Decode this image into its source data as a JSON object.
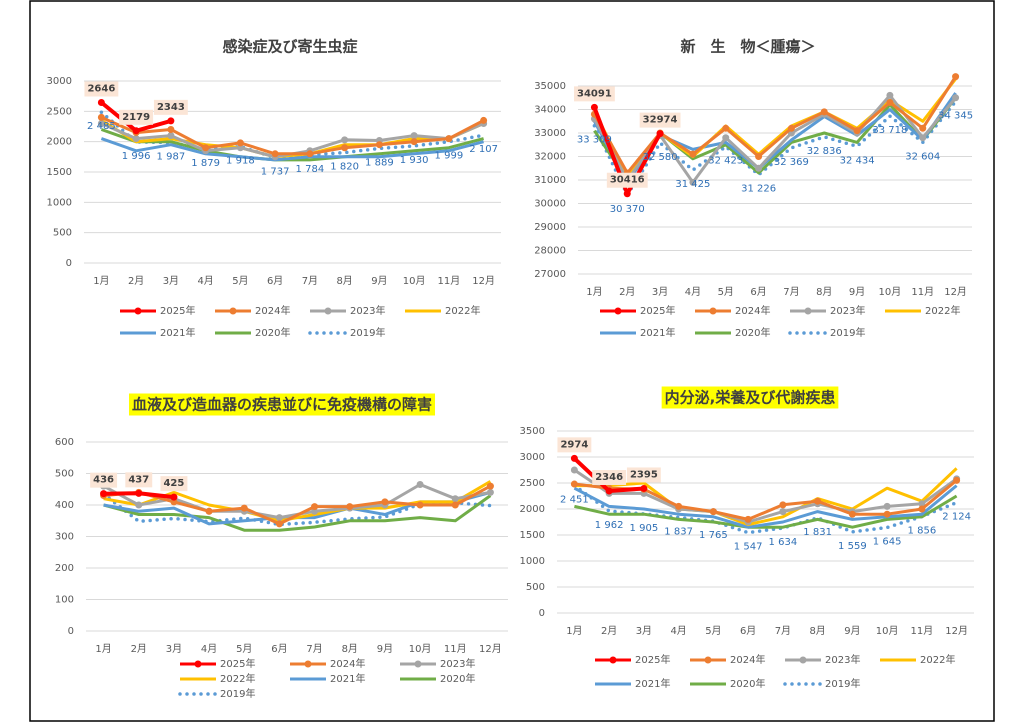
{
  "chart_data": [
    {
      "type": "line",
      "title": "感染症及び寄生虫症",
      "categories": [
        "1月",
        "2月",
        "3月",
        "4月",
        "5月",
        "6月",
        "7月",
        "8月",
        "9月",
        "10月",
        "11月",
        "12月"
      ],
      "ylim": [
        0,
        3000
      ],
      "yticks": [
        0,
        500,
        1000,
        1500,
        2000,
        2500,
        3000
      ],
      "series": [
        {
          "name": "2025年",
          "color": "#ff0000",
          "values": [
            2646,
            2179,
            2343,
            null,
            null,
            null,
            null,
            null,
            null,
            null,
            null,
            null
          ],
          "value_labels": [
            "2646",
            "2179",
            "2343",
            null,
            null,
            null,
            null,
            null,
            null,
            null,
            null,
            null
          ]
        },
        {
          "name": "2024年",
          "color": "#ed7d31",
          "values": [
            2400,
            2150,
            2200,
            1900,
            1980,
            1800,
            1800,
            1900,
            1950,
            2000,
            2050,
            2350
          ]
        },
        {
          "name": "2023年",
          "color": "#a5a5a5",
          "values": [
            2300,
            2050,
            2100,
            1850,
            1900,
            1750,
            1850,
            2030,
            2020,
            2100,
            2050,
            2300
          ]
        },
        {
          "name": "2022年",
          "color": "#ffc000",
          "values": [
            2350,
            2000,
            2050,
            1950,
            1900,
            1750,
            1800,
            1950,
            1950,
            2050,
            2050,
            2300
          ]
        },
        {
          "name": "2021年",
          "color": "#5b9bd5",
          "values": [
            2050,
            1850,
            1950,
            1800,
            1750,
            1700,
            1750,
            1750,
            1750,
            1800,
            1850,
            2000
          ]
        },
        {
          "name": "2020年",
          "color": "#70ad47",
          "values": [
            2200,
            2000,
            2000,
            1850,
            1750,
            1700,
            1700,
            1750,
            1800,
            1850,
            1900,
            2050
          ]
        },
        {
          "name": "2019年",
          "color": "#5b9bd5",
          "dotted": true,
          "values": [
            2485,
            1996,
            1987,
            1879,
            1918,
            1737,
            1784,
            1820,
            1889,
            1930,
            1999,
            2107
          ],
          "value_labels": [
            "2 485",
            "1 996",
            "1 987",
            "1 879",
            "1 918",
            "1 737",
            "1 784",
            "1 820",
            "1 889",
            "1 930",
            "1 999",
            "2 107"
          ]
        }
      ]
    },
    {
      "type": "line",
      "title": "新　生　物＜腫瘍＞",
      "categories": [
        "1月",
        "2月",
        "3月",
        "4月",
        "5月",
        "6月",
        "7月",
        "8月",
        "9月",
        "10月",
        "11月",
        "12月"
      ],
      "ylim": [
        27000,
        35000
      ],
      "yticks": [
        27000,
        28000,
        29000,
        30000,
        31000,
        32000,
        33000,
        34000,
        35000
      ],
      "series": [
        {
          "name": "2025年",
          "color": "#ff0000",
          "values": [
            34091,
            30416,
            32974,
            null,
            null,
            null,
            null,
            null,
            null,
            null,
            null,
            null
          ],
          "value_labels": [
            "34091",
            "30416",
            "32974",
            null,
            null,
            null,
            null,
            null,
            null,
            null,
            null,
            null
          ]
        },
        {
          "name": "2024年",
          "color": "#ed7d31",
          "values": [
            33800,
            31300,
            33000,
            32100,
            33200,
            32000,
            33200,
            33900,
            33100,
            34300,
            33200,
            35400
          ]
        },
        {
          "name": "2023年",
          "color": "#a5a5a5",
          "values": [
            33600,
            31000,
            32900,
            30900,
            32800,
            31500,
            33000,
            33800,
            33000,
            34600,
            32800,
            34500
          ]
        },
        {
          "name": "2022年",
          "color": "#ffc000",
          "values": [
            33900,
            31200,
            33000,
            32000,
            33300,
            32100,
            33300,
            33900,
            33200,
            34400,
            33500,
            35300
          ]
        },
        {
          "name": "2021年",
          "color": "#5b9bd5",
          "values": [
            33500,
            30900,
            32900,
            32300,
            32600,
            31500,
            32700,
            33700,
            32900,
            34000,
            32700,
            34700
          ]
        },
        {
          "name": "2020年",
          "color": "#70ad47",
          "values": [
            33100,
            31000,
            33000,
            31900,
            32500,
            31300,
            32600,
            33000,
            32600,
            34200,
            32700,
            34500
          ]
        },
        {
          "name": "2019年",
          "color": "#5b9bd5",
          "dotted": true,
          "values": [
            33309,
            30370,
            32580,
            31425,
            32423,
            31226,
            32369,
            32836,
            32434,
            33718,
            32604,
            34345
          ],
          "value_labels": [
            "33 309",
            "30 370",
            "32 580",
            "31 425",
            "32 423",
            "31 226",
            "32 369",
            "32 836",
            "32 434",
            "33 718",
            "32 604",
            "34 345"
          ]
        }
      ]
    },
    {
      "type": "line",
      "title": "血液及び造血器の疾患並びに免疫機構の障害",
      "title_background": "#ffff00",
      "categories": [
        "1月",
        "2月",
        "3月",
        "4月",
        "5月",
        "6月",
        "7月",
        "8月",
        "9月",
        "10月",
        "11月",
        "12月"
      ],
      "ylim": [
        0,
        600
      ],
      "yticks": [
        0,
        100,
        200,
        300,
        400,
        500,
        600
      ],
      "series": [
        {
          "name": "2025年",
          "color": "#ff0000",
          "values": [
            436,
            437,
            425,
            null,
            null,
            null,
            null,
            null,
            null,
            null,
            null,
            null
          ],
          "value_labels": [
            "436",
            "437",
            "425",
            null,
            null,
            null,
            null,
            null,
            null,
            null,
            null,
            null
          ]
        },
        {
          "name": "2024年",
          "color": "#ed7d31",
          "values": [
            430,
            440,
            410,
            380,
            390,
            340,
            395,
            395,
            410,
            400,
            400,
            460
          ]
        },
        {
          "name": "2023年",
          "color": "#a5a5a5",
          "values": [
            460,
            400,
            420,
            380,
            380,
            360,
            380,
            390,
            400,
            465,
            420,
            440
          ]
        },
        {
          "name": "2022年",
          "color": "#ffc000",
          "values": [
            420,
            400,
            440,
            400,
            380,
            350,
            370,
            390,
            390,
            410,
            410,
            475
          ]
        },
        {
          "name": "2021年",
          "color": "#5b9bd5",
          "values": [
            400,
            380,
            390,
            340,
            350,
            360,
            360,
            390,
            370,
            410,
            410,
            440
          ]
        },
        {
          "name": "2020年",
          "color": "#70ad47",
          "values": [
            400,
            370,
            370,
            360,
            320,
            320,
            330,
            350,
            350,
            360,
            350,
            430
          ]
        },
        {
          "name": "2019年",
          "color": "#5b9bd5",
          "dotted": true,
          "values": [
            435,
            348,
            357,
            347,
            358,
            338,
            345,
            356,
            362,
            403,
            407,
            398
          ]
        }
      ]
    },
    {
      "type": "line",
      "title": "内分泌,栄養及び代謝疾患",
      "title_background": "#ffff00",
      "categories": [
        "1月",
        "2月",
        "3月",
        "4月",
        "5月",
        "6月",
        "7月",
        "8月",
        "9月",
        "10月",
        "11月",
        "12月"
      ],
      "ylim": [
        0,
        3500
      ],
      "yticks": [
        0,
        500,
        1000,
        1500,
        2000,
        2500,
        3000,
        3500
      ],
      "series": [
        {
          "name": "2025年",
          "color": "#ff0000",
          "values": [
            2974,
            2346,
            2395,
            null,
            null,
            null,
            null,
            null,
            null,
            null,
            null,
            null
          ],
          "value_labels": [
            "2974",
            "2346",
            "2395",
            null,
            null,
            null,
            null,
            null,
            null,
            null,
            null,
            null
          ]
        },
        {
          "name": "2024年",
          "color": "#ed7d31",
          "values": [
            2480,
            2400,
            2380,
            2050,
            1950,
            1800,
            2080,
            2150,
            1900,
            1900,
            2000,
            2550
          ]
        },
        {
          "name": "2023年",
          "color": "#a5a5a5",
          "values": [
            2750,
            2300,
            2300,
            2000,
            1950,
            1750,
            1950,
            2100,
            1950,
            2050,
            2100,
            2580
          ]
        },
        {
          "name": "2022年",
          "color": "#ffc000",
          "values": [
            2450,
            2450,
            2500,
            2000,
            1950,
            1700,
            1850,
            2200,
            2000,
            2400,
            2150,
            2780
          ]
        },
        {
          "name": "2021年",
          "color": "#5b9bd5",
          "values": [
            2400,
            2050,
            2000,
            1900,
            1850,
            1650,
            1750,
            1950,
            1800,
            1850,
            1900,
            2450
          ]
        },
        {
          "name": "2020年",
          "color": "#70ad47",
          "values": [
            2050,
            1900,
            1900,
            1800,
            1750,
            1650,
            1650,
            1800,
            1650,
            1800,
            1850,
            2250
          ]
        },
        {
          "name": "2019年",
          "color": "#5b9bd5",
          "dotted": true,
          "values": [
            2451,
            1962,
            1905,
            1837,
            1765,
            1547,
            1634,
            1831,
            1559,
            1645,
            1856,
            2124
          ],
          "value_labels": [
            "2 451",
            "1 962",
            "1 905",
            "1 837",
            "1 765",
            "1 547",
            "1 634",
            "1 831",
            "1 559",
            "1 645",
            "1 856",
            "2 124"
          ]
        }
      ]
    }
  ]
}
